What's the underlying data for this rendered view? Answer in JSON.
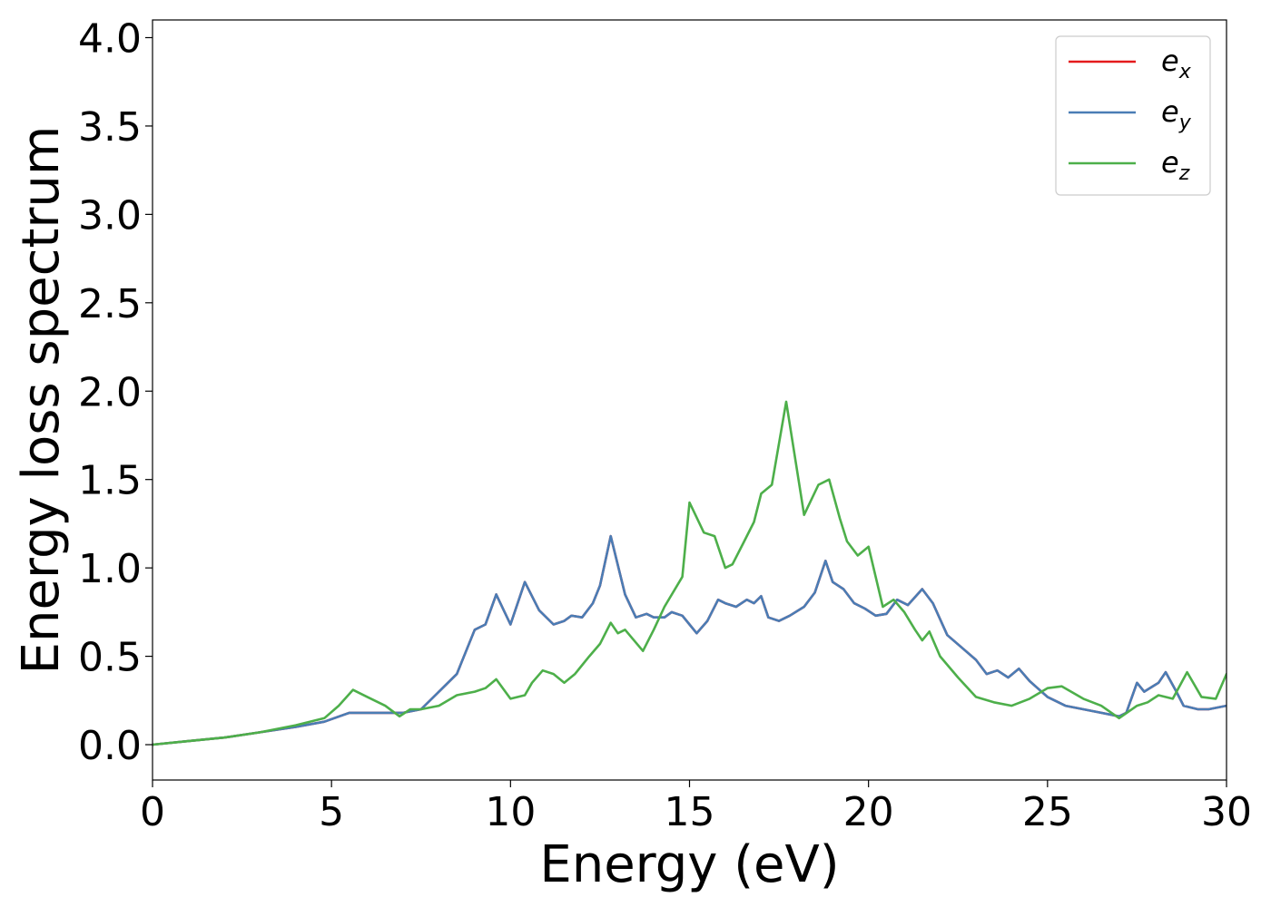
{
  "chart_data": {
    "type": "line",
    "xlabel": "Energy (eV)",
    "ylabel": "Energy loss spectrum",
    "xlim": [
      0,
      30
    ],
    "ylim": [
      -0.2,
      4.1
    ],
    "xticks": [
      0,
      5,
      10,
      15,
      20,
      25,
      30
    ],
    "xtick_labels": [
      "0",
      "5",
      "10",
      "15",
      "20",
      "25",
      "30"
    ],
    "yticks": [
      0.0,
      0.5,
      1.0,
      1.5,
      2.0,
      2.5,
      3.0,
      3.5,
      4.0
    ],
    "ytick_labels": [
      "0.0",
      "0.5",
      "1.0",
      "1.5",
      "2.0",
      "2.5",
      "3.0",
      "3.5",
      "4.0"
    ],
    "grid": false,
    "legend_position": "top-right",
    "series": [
      {
        "name": "e_x",
        "label_main": "e",
        "label_sub": "x",
        "color": "#e41a1c",
        "points": [
          [
            0,
            0.0
          ],
          [
            1,
            0.02
          ],
          [
            2,
            0.04
          ],
          [
            3,
            0.07
          ],
          [
            4,
            0.1
          ],
          [
            4.8,
            0.13
          ],
          [
            5.5,
            0.18
          ],
          [
            6,
            0.18
          ],
          [
            7,
            0.18
          ],
          [
            7.5,
            0.2
          ],
          [
            8,
            0.3
          ],
          [
            8.5,
            0.4
          ],
          [
            9,
            0.65
          ],
          [
            9.3,
            0.68
          ],
          [
            9.6,
            0.85
          ],
          [
            10,
            0.68
          ],
          [
            10.4,
            0.92
          ],
          [
            10.8,
            0.76
          ],
          [
            11.2,
            0.68
          ],
          [
            11.5,
            0.7
          ],
          [
            11.7,
            0.73
          ],
          [
            12,
            0.72
          ],
          [
            12.3,
            0.8
          ],
          [
            12.5,
            0.9
          ],
          [
            12.8,
            1.18
          ],
          [
            13.2,
            0.85
          ],
          [
            13.5,
            0.72
          ],
          [
            13.8,
            0.74
          ],
          [
            14,
            0.72
          ],
          [
            14.3,
            0.72
          ],
          [
            14.5,
            0.75
          ],
          [
            14.8,
            0.73
          ],
          [
            15,
            0.68
          ],
          [
            15.2,
            0.63
          ],
          [
            15.5,
            0.7
          ],
          [
            15.8,
            0.82
          ],
          [
            16,
            0.8
          ],
          [
            16.3,
            0.78
          ],
          [
            16.6,
            0.82
          ],
          [
            16.8,
            0.8
          ],
          [
            17,
            0.84
          ],
          [
            17.2,
            0.72
          ],
          [
            17.5,
            0.7
          ],
          [
            17.8,
            0.73
          ],
          [
            18.2,
            0.78
          ],
          [
            18.5,
            0.86
          ],
          [
            18.8,
            1.04
          ],
          [
            19,
            0.92
          ],
          [
            19.3,
            0.88
          ],
          [
            19.6,
            0.8
          ],
          [
            19.9,
            0.77
          ],
          [
            20.2,
            0.73
          ],
          [
            20.5,
            0.74
          ],
          [
            20.8,
            0.82
          ],
          [
            21.1,
            0.79
          ],
          [
            21.5,
            0.88
          ],
          [
            21.8,
            0.8
          ],
          [
            22.2,
            0.62
          ],
          [
            22.6,
            0.55
          ],
          [
            23,
            0.48
          ],
          [
            23.3,
            0.4
          ],
          [
            23.6,
            0.42
          ],
          [
            23.9,
            0.38
          ],
          [
            24.2,
            0.43
          ],
          [
            24.5,
            0.36
          ],
          [
            25,
            0.27
          ],
          [
            25.5,
            0.22
          ],
          [
            26,
            0.2
          ],
          [
            26.5,
            0.18
          ],
          [
            27,
            0.16
          ],
          [
            27.2,
            0.18
          ],
          [
            27.5,
            0.35
          ],
          [
            27.7,
            0.3
          ],
          [
            28.1,
            0.35
          ],
          [
            28.3,
            0.41
          ],
          [
            28.6,
            0.3
          ],
          [
            28.8,
            0.22
          ],
          [
            29.2,
            0.2
          ],
          [
            29.5,
            0.2
          ],
          [
            30,
            0.22
          ]
        ]
      },
      {
        "name": "e_y",
        "label_main": "e",
        "label_sub": "y",
        "color": "#4a7db5",
        "points": [
          [
            0,
            0.0
          ],
          [
            1,
            0.02
          ],
          [
            2,
            0.04
          ],
          [
            3,
            0.07
          ],
          [
            4,
            0.1
          ],
          [
            4.8,
            0.13
          ],
          [
            5.5,
            0.18
          ],
          [
            6,
            0.18
          ],
          [
            7,
            0.18
          ],
          [
            7.5,
            0.2
          ],
          [
            8,
            0.3
          ],
          [
            8.5,
            0.4
          ],
          [
            9,
            0.65
          ],
          [
            9.3,
            0.68
          ],
          [
            9.6,
            0.85
          ],
          [
            10,
            0.68
          ],
          [
            10.4,
            0.92
          ],
          [
            10.8,
            0.76
          ],
          [
            11.2,
            0.68
          ],
          [
            11.5,
            0.7
          ],
          [
            11.7,
            0.73
          ],
          [
            12,
            0.72
          ],
          [
            12.3,
            0.8
          ],
          [
            12.5,
            0.9
          ],
          [
            12.8,
            1.18
          ],
          [
            13.2,
            0.85
          ],
          [
            13.5,
            0.72
          ],
          [
            13.8,
            0.74
          ],
          [
            14,
            0.72
          ],
          [
            14.3,
            0.72
          ],
          [
            14.5,
            0.75
          ],
          [
            14.8,
            0.73
          ],
          [
            15,
            0.68
          ],
          [
            15.2,
            0.63
          ],
          [
            15.5,
            0.7
          ],
          [
            15.8,
            0.82
          ],
          [
            16,
            0.8
          ],
          [
            16.3,
            0.78
          ],
          [
            16.6,
            0.82
          ],
          [
            16.8,
            0.8
          ],
          [
            17,
            0.84
          ],
          [
            17.2,
            0.72
          ],
          [
            17.5,
            0.7
          ],
          [
            17.8,
            0.73
          ],
          [
            18.2,
            0.78
          ],
          [
            18.5,
            0.86
          ],
          [
            18.8,
            1.04
          ],
          [
            19,
            0.92
          ],
          [
            19.3,
            0.88
          ],
          [
            19.6,
            0.8
          ],
          [
            19.9,
            0.77
          ],
          [
            20.2,
            0.73
          ],
          [
            20.5,
            0.74
          ],
          [
            20.8,
            0.82
          ],
          [
            21.1,
            0.79
          ],
          [
            21.5,
            0.88
          ],
          [
            21.8,
            0.8
          ],
          [
            22.2,
            0.62
          ],
          [
            22.6,
            0.55
          ],
          [
            23,
            0.48
          ],
          [
            23.3,
            0.4
          ],
          [
            23.6,
            0.42
          ],
          [
            23.9,
            0.38
          ],
          [
            24.2,
            0.43
          ],
          [
            24.5,
            0.36
          ],
          [
            25,
            0.27
          ],
          [
            25.5,
            0.22
          ],
          [
            26,
            0.2
          ],
          [
            26.5,
            0.18
          ],
          [
            27,
            0.16
          ],
          [
            27.2,
            0.18
          ],
          [
            27.5,
            0.35
          ],
          [
            27.7,
            0.3
          ],
          [
            28.1,
            0.35
          ],
          [
            28.3,
            0.41
          ],
          [
            28.6,
            0.3
          ],
          [
            28.8,
            0.22
          ],
          [
            29.2,
            0.2
          ],
          [
            29.5,
            0.2
          ],
          [
            30,
            0.22
          ]
        ]
      },
      {
        "name": "e_z",
        "label_main": "e",
        "label_sub": "z",
        "color": "#4daf4a",
        "points": [
          [
            0,
            0.0
          ],
          [
            1,
            0.02
          ],
          [
            2,
            0.04
          ],
          [
            3,
            0.07
          ],
          [
            4,
            0.11
          ],
          [
            4.8,
            0.15
          ],
          [
            5.2,
            0.22
          ],
          [
            5.6,
            0.31
          ],
          [
            6,
            0.27
          ],
          [
            6.5,
            0.22
          ],
          [
            6.9,
            0.16
          ],
          [
            7.2,
            0.2
          ],
          [
            7.5,
            0.2
          ],
          [
            8,
            0.22
          ],
          [
            8.5,
            0.28
          ],
          [
            9,
            0.3
          ],
          [
            9.3,
            0.32
          ],
          [
            9.6,
            0.37
          ],
          [
            10,
            0.26
          ],
          [
            10.4,
            0.28
          ],
          [
            10.6,
            0.35
          ],
          [
            10.9,
            0.42
          ],
          [
            11.2,
            0.4
          ],
          [
            11.5,
            0.35
          ],
          [
            11.8,
            0.4
          ],
          [
            12.2,
            0.5
          ],
          [
            12.5,
            0.57
          ],
          [
            12.8,
            0.69
          ],
          [
            13,
            0.63
          ],
          [
            13.2,
            0.65
          ],
          [
            13.7,
            0.53
          ],
          [
            14,
            0.65
          ],
          [
            14.3,
            0.78
          ],
          [
            14.8,
            0.95
          ],
          [
            15,
            1.37
          ],
          [
            15.4,
            1.2
          ],
          [
            15.7,
            1.18
          ],
          [
            16,
            1.0
          ],
          [
            16.2,
            1.02
          ],
          [
            16.5,
            1.14
          ],
          [
            16.8,
            1.26
          ],
          [
            17,
            1.42
          ],
          [
            17.3,
            1.47
          ],
          [
            17.7,
            1.94
          ],
          [
            18.2,
            1.3
          ],
          [
            18.6,
            1.47
          ],
          [
            18.9,
            1.5
          ],
          [
            19.2,
            1.28
          ],
          [
            19.4,
            1.15
          ],
          [
            19.7,
            1.07
          ],
          [
            20,
            1.12
          ],
          [
            20.4,
            0.78
          ],
          [
            20.7,
            0.82
          ],
          [
            21,
            0.75
          ],
          [
            21.3,
            0.65
          ],
          [
            21.5,
            0.59
          ],
          [
            21.7,
            0.64
          ],
          [
            22,
            0.5
          ],
          [
            22.5,
            0.38
          ],
          [
            23,
            0.27
          ],
          [
            23.5,
            0.24
          ],
          [
            24,
            0.22
          ],
          [
            24.5,
            0.26
          ],
          [
            25,
            0.32
          ],
          [
            25.4,
            0.33
          ],
          [
            26,
            0.26
          ],
          [
            26.5,
            0.22
          ],
          [
            27,
            0.15
          ],
          [
            27.5,
            0.22
          ],
          [
            27.8,
            0.24
          ],
          [
            28.1,
            0.28
          ],
          [
            28.5,
            0.26
          ],
          [
            28.9,
            0.41
          ],
          [
            29.3,
            0.27
          ],
          [
            29.7,
            0.26
          ],
          [
            30,
            0.4
          ]
        ]
      }
    ]
  }
}
